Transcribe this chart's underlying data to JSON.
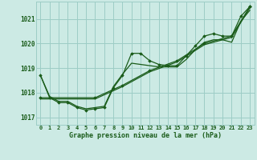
{
  "title": "Graphe pression niveau de la mer (hPa)",
  "background_color": "#cceae4",
  "grid_color": "#9dcdc6",
  "line_color": "#1a5c1a",
  "xlim": [
    -0.5,
    23.5
  ],
  "ylim": [
    1016.7,
    1021.7
  ],
  "yticks": [
    1017,
    1018,
    1019,
    1020,
    1021
  ],
  "xtick_labels": [
    "0",
    "1",
    "2",
    "3",
    "4",
    "5",
    "6",
    "7",
    "8",
    "9",
    "10",
    "11",
    "12",
    "13",
    "14",
    "15",
    "16",
    "17",
    "18",
    "19",
    "20",
    "21",
    "22",
    "23"
  ],
  "series": [
    {
      "x": [
        0,
        1,
        2,
        3,
        4,
        5,
        6,
        7,
        8,
        9,
        10,
        11,
        12,
        13,
        14,
        15,
        16,
        17,
        18,
        19,
        20,
        21,
        22,
        23
      ],
      "y": [
        1018.7,
        1017.8,
        1017.6,
        1017.6,
        1017.4,
        1017.3,
        1017.35,
        1017.4,
        1018.2,
        1018.7,
        1019.6,
        1019.6,
        1019.3,
        1019.15,
        1019.1,
        1019.1,
        1019.5,
        1019.9,
        1020.3,
        1020.4,
        1020.3,
        1020.3,
        1021.1,
        1021.5
      ],
      "markers": true
    },
    {
      "x": [
        0,
        1,
        2,
        3,
        4,
        5,
        6,
        7,
        8,
        9,
        10,
        11,
        12,
        13,
        14,
        15,
        16,
        17,
        18,
        19,
        20,
        21,
        22,
        23
      ],
      "y": [
        1018.7,
        1017.85,
        1017.65,
        1017.65,
        1017.45,
        1017.35,
        1017.4,
        1017.45,
        1018.25,
        1018.75,
        1019.2,
        1019.15,
        1019.1,
        1019.05,
        1019.05,
        1019.05,
        1019.35,
        1019.75,
        1020.05,
        1020.15,
        1020.15,
        1020.05,
        1020.9,
        1021.35
      ],
      "markers": false
    },
    {
      "x": [
        0,
        6,
        9,
        12,
        15,
        18,
        21,
        23
      ],
      "y": [
        1017.8,
        1017.8,
        1018.3,
        1018.9,
        1019.3,
        1020.0,
        1020.3,
        1021.5
      ],
      "markers": true
    },
    {
      "x": [
        0,
        6,
        9,
        12,
        15,
        18,
        21,
        23
      ],
      "y": [
        1017.75,
        1017.75,
        1018.25,
        1018.85,
        1019.25,
        1019.95,
        1020.25,
        1021.45
      ],
      "markers": false
    }
  ]
}
